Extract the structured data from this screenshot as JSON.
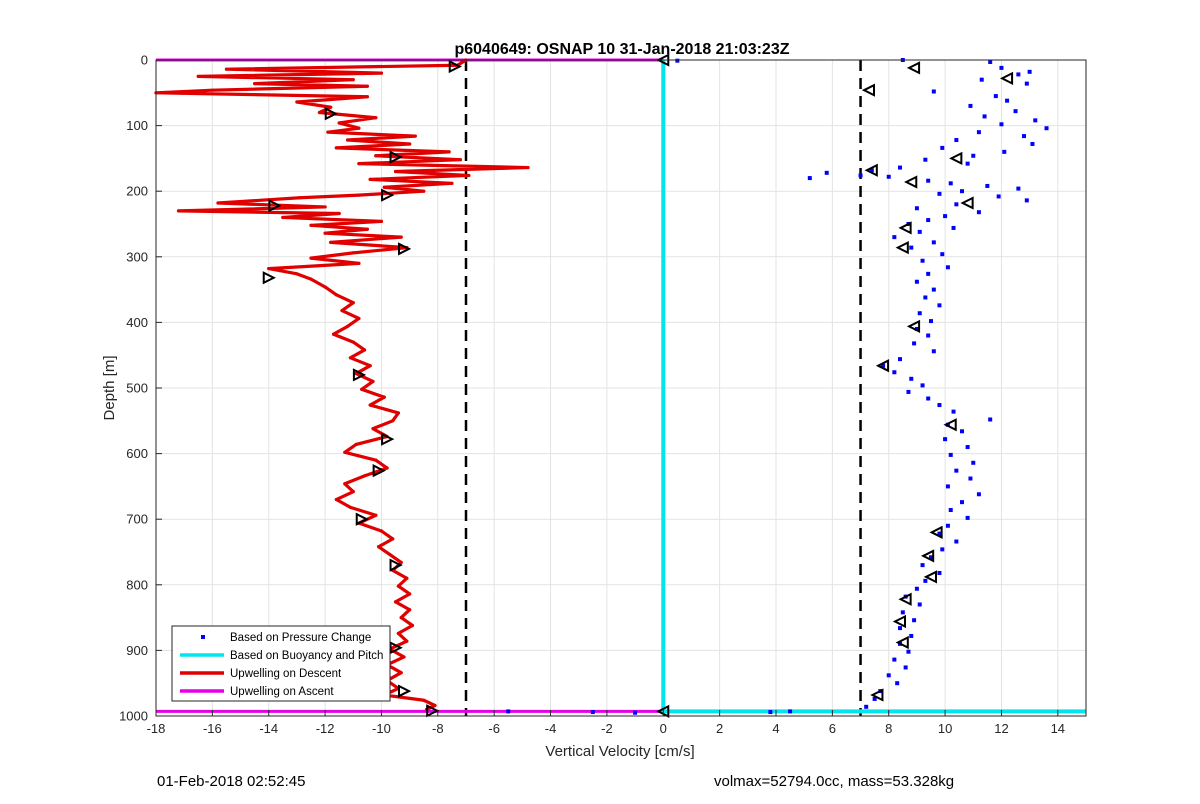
{
  "chart_data": {
    "type": "scatter",
    "title": "p6040649: OSNAP 10 31-Jan-2018 21:03:23Z",
    "xlabel": "Vertical Velocity [cm/s]",
    "ylabel": "Depth [m]",
    "xlim": [
      -18,
      15
    ],
    "ylim": [
      1000,
      0
    ],
    "x_ticks": [
      -18,
      -16,
      -14,
      -12,
      -10,
      -8,
      -6,
      -4,
      -2,
      0,
      2,
      4,
      6,
      8,
      10,
      12,
      14
    ],
    "y_ticks": [
      0,
      100,
      200,
      300,
      400,
      500,
      600,
      700,
      800,
      900,
      1000
    ],
    "grid": true,
    "legend_position": "bottom-left",
    "reference_lines_x": [
      -7,
      7
    ],
    "series": [
      {
        "name": "Based on Pressure Change",
        "kind": "points",
        "color": "#0000ff",
        "points": [
          [
            8.5,
            0
          ],
          [
            11.6,
            3
          ],
          [
            12.0,
            12
          ],
          [
            13.0,
            18
          ],
          [
            12.6,
            22
          ],
          [
            11.3,
            30
          ],
          [
            12.9,
            36
          ],
          [
            9.6,
            48
          ],
          [
            11.8,
            55
          ],
          [
            12.2,
            62
          ],
          [
            10.9,
            70
          ],
          [
            12.5,
            78
          ],
          [
            11.4,
            86
          ],
          [
            13.2,
            92
          ],
          [
            12.0,
            98
          ],
          [
            13.6,
            104
          ],
          [
            11.2,
            110
          ],
          [
            12.8,
            116
          ],
          [
            10.4,
            122
          ],
          [
            13.1,
            128
          ],
          [
            9.9,
            134
          ],
          [
            12.1,
            140
          ],
          [
            11.0,
            146
          ],
          [
            9.3,
            152
          ],
          [
            10.8,
            158
          ],
          [
            8.4,
            164
          ],
          [
            7.4,
            168
          ],
          [
            5.8,
            172
          ],
          [
            7.0,
            176
          ],
          [
            8.0,
            178
          ],
          [
            5.2,
            180
          ],
          [
            9.4,
            184
          ],
          [
            10.2,
            188
          ],
          [
            11.5,
            192
          ],
          [
            12.6,
            196
          ],
          [
            10.6,
            200
          ],
          [
            9.8,
            204
          ],
          [
            11.9,
            208
          ],
          [
            12.9,
            214
          ],
          [
            10.4,
            220
          ],
          [
            9.0,
            226
          ],
          [
            11.2,
            232
          ],
          [
            10.0,
            238
          ],
          [
            9.4,
            244
          ],
          [
            8.7,
            250
          ],
          [
            10.3,
            256
          ],
          [
            9.1,
            262
          ],
          [
            8.2,
            270
          ],
          [
            9.6,
            278
          ],
          [
            8.8,
            286
          ],
          [
            9.9,
            296
          ],
          [
            9.2,
            306
          ],
          [
            10.1,
            316
          ],
          [
            9.4,
            326
          ],
          [
            9.0,
            338
          ],
          [
            9.6,
            350
          ],
          [
            9.3,
            362
          ],
          [
            9.8,
            374
          ],
          [
            9.1,
            386
          ],
          [
            9.5,
            398
          ],
          [
            9.0,
            410
          ],
          [
            9.4,
            420
          ],
          [
            8.9,
            432
          ],
          [
            9.6,
            444
          ],
          [
            8.4,
            456
          ],
          [
            7.8,
            466
          ],
          [
            8.2,
            476
          ],
          [
            8.8,
            486
          ],
          [
            9.2,
            496
          ],
          [
            8.7,
            506
          ],
          [
            9.4,
            516
          ],
          [
            9.8,
            526
          ],
          [
            10.3,
            536
          ],
          [
            11.6,
            548
          ],
          [
            10.1,
            556
          ],
          [
            10.6,
            566
          ],
          [
            10.0,
            578
          ],
          [
            10.8,
            590
          ],
          [
            10.2,
            602
          ],
          [
            11.0,
            614
          ],
          [
            10.4,
            626
          ],
          [
            10.9,
            638
          ],
          [
            10.1,
            650
          ],
          [
            11.2,
            662
          ],
          [
            10.6,
            674
          ],
          [
            10.2,
            686
          ],
          [
            10.8,
            698
          ],
          [
            10.1,
            710
          ],
          [
            9.8,
            722
          ],
          [
            10.4,
            734
          ],
          [
            9.9,
            746
          ],
          [
            9.5,
            758
          ],
          [
            9.2,
            770
          ],
          [
            9.8,
            782
          ],
          [
            9.3,
            794
          ],
          [
            9.0,
            806
          ],
          [
            8.6,
            818
          ],
          [
            9.1,
            830
          ],
          [
            8.5,
            842
          ],
          [
            8.9,
            854
          ],
          [
            8.4,
            866
          ],
          [
            8.8,
            878
          ],
          [
            8.4,
            890
          ],
          [
            8.7,
            902
          ],
          [
            8.2,
            914
          ],
          [
            8.6,
            926
          ],
          [
            8.0,
            938
          ],
          [
            8.3,
            950
          ],
          [
            7.7,
            962
          ],
          [
            7.5,
            974
          ],
          [
            7.2,
            986
          ],
          [
            4.5,
            993
          ],
          [
            3.8,
            994
          ],
          [
            0.5,
            1
          ],
          [
            -1.0,
            995
          ],
          [
            -2.5,
            994
          ],
          [
            -5.5,
            993
          ]
        ]
      },
      {
        "name": "Based on Buoyancy and Pitch",
        "kind": "line",
        "color": "#00e5ee",
        "points": [
          [
            0,
            0
          ],
          [
            0,
            993
          ],
          [
            15,
            993
          ]
        ]
      },
      {
        "name": "Upwelling on Descent",
        "kind": "line",
        "color": "#e00000",
        "points": [
          [
            -7.0,
            0
          ],
          [
            -7.3,
            8
          ],
          [
            -15.5,
            14
          ],
          [
            -10.0,
            20
          ],
          [
            -16.5,
            25
          ],
          [
            -11.0,
            30
          ],
          [
            -14.5,
            36
          ],
          [
            -10.5,
            40
          ],
          [
            -16.0,
            46
          ],
          [
            -18.0,
            50
          ],
          [
            -10.5,
            56
          ],
          [
            -13.0,
            64
          ],
          [
            -11.8,
            72
          ],
          [
            -12.2,
            80
          ],
          [
            -10.2,
            88
          ],
          [
            -11.5,
            96
          ],
          [
            -10.8,
            104
          ],
          [
            -11.9,
            110
          ],
          [
            -8.8,
            116
          ],
          [
            -11.2,
            122
          ],
          [
            -9.0,
            128
          ],
          [
            -11.6,
            134
          ],
          [
            -7.6,
            140
          ],
          [
            -10.2,
            146
          ],
          [
            -7.2,
            152
          ],
          [
            -10.8,
            158
          ],
          [
            -4.8,
            164
          ],
          [
            -9.5,
            170
          ],
          [
            -6.9,
            176
          ],
          [
            -10.4,
            182
          ],
          [
            -7.5,
            188
          ],
          [
            -9.9,
            194
          ],
          [
            -8.5,
            200
          ],
          [
            -10.8,
            206
          ],
          [
            -12.9,
            210
          ],
          [
            -15.8,
            218
          ],
          [
            -12.0,
            224
          ],
          [
            -17.2,
            230
          ],
          [
            -11.5,
            234
          ],
          [
            -13.5,
            240
          ],
          [
            -10.0,
            246
          ],
          [
            -12.5,
            252
          ],
          [
            -10.5,
            258
          ],
          [
            -12.0,
            264
          ],
          [
            -9.3,
            270
          ],
          [
            -11.8,
            278
          ],
          [
            -9.1,
            286
          ],
          [
            -11.0,
            294
          ],
          [
            -12.5,
            302
          ],
          [
            -10.8,
            310
          ],
          [
            -14.0,
            318
          ],
          [
            -13.0,
            326
          ],
          [
            -12.5,
            334
          ],
          [
            -12.0,
            346
          ],
          [
            -11.6,
            358
          ],
          [
            -11.0,
            370
          ],
          [
            -11.4,
            382
          ],
          [
            -10.8,
            394
          ],
          [
            -11.2,
            406
          ],
          [
            -11.7,
            418
          ],
          [
            -11.0,
            430
          ],
          [
            -10.6,
            442
          ],
          [
            -11.1,
            454
          ],
          [
            -10.4,
            466
          ],
          [
            -10.9,
            478
          ],
          [
            -10.3,
            490
          ],
          [
            -10.7,
            502
          ],
          [
            -9.9,
            514
          ],
          [
            -10.4,
            526
          ],
          [
            -9.4,
            538
          ],
          [
            -9.6,
            550
          ],
          [
            -10.3,
            562
          ],
          [
            -9.8,
            574
          ],
          [
            -10.9,
            586
          ],
          [
            -11.3,
            598
          ],
          [
            -10.2,
            610
          ],
          [
            -9.8,
            622
          ],
          [
            -10.6,
            634
          ],
          [
            -11.3,
            646
          ],
          [
            -11.0,
            658
          ],
          [
            -11.6,
            670
          ],
          [
            -11.1,
            682
          ],
          [
            -10.2,
            694
          ],
          [
            -10.8,
            706
          ],
          [
            -10.0,
            718
          ],
          [
            -9.6,
            730
          ],
          [
            -10.1,
            742
          ],
          [
            -9.7,
            754
          ],
          [
            -9.3,
            766
          ],
          [
            -9.6,
            778
          ],
          [
            -9.1,
            790
          ],
          [
            -9.4,
            802
          ],
          [
            -9.0,
            814
          ],
          [
            -9.5,
            826
          ],
          [
            -9.0,
            838
          ],
          [
            -9.3,
            850
          ],
          [
            -8.9,
            862
          ],
          [
            -9.4,
            874
          ],
          [
            -9.1,
            886
          ],
          [
            -9.7,
            898
          ],
          [
            -9.2,
            910
          ],
          [
            -9.8,
            922
          ],
          [
            -9.3,
            934
          ],
          [
            -9.8,
            946
          ],
          [
            -9.4,
            958
          ],
          [
            -9.9,
            968
          ],
          [
            -8.5,
            976
          ],
          [
            -8.1,
            984
          ],
          [
            -8.4,
            990
          ]
        ]
      },
      {
        "name": "Upwelling on Ascent",
        "kind": "line",
        "color": "#e600e6",
        "points": [
          [
            -18,
            0
          ],
          [
            0,
            0
          ],
          [
            0,
            993
          ],
          [
            -18,
            993
          ]
        ]
      }
    ],
    "markers": {
      "descent": [
        [
          -7.4,
          10
        ],
        [
          -11.8,
          82
        ],
        [
          -9.5,
          148
        ],
        [
          -9.8,
          206
        ],
        [
          -13.8,
          222
        ],
        [
          -9.2,
          288
        ],
        [
          -14.0,
          332
        ],
        [
          -10.8,
          480
        ],
        [
          -9.8,
          578
        ],
        [
          -10.1,
          626
        ],
        [
          -10.7,
          700
        ],
        [
          -9.5,
          770
        ],
        [
          -9.5,
          896
        ],
        [
          -9.2,
          962
        ],
        [
          -8.2,
          992
        ]
      ],
      "ascent": [
        [
          8.9,
          12
        ],
        [
          12.2,
          28
        ],
        [
          7.3,
          46
        ],
        [
          10.4,
          150
        ],
        [
          7.4,
          168
        ],
        [
          8.8,
          186
        ],
        [
          10.8,
          218
        ],
        [
          8.6,
          256
        ],
        [
          8.5,
          286
        ],
        [
          8.9,
          406
        ],
        [
          7.8,
          466
        ],
        [
          10.2,
          556
        ],
        [
          9.7,
          720
        ],
        [
          9.4,
          756
        ],
        [
          9.5,
          788
        ],
        [
          8.6,
          822
        ],
        [
          8.4,
          856
        ],
        [
          8.5,
          888
        ],
        [
          7.6,
          968
        ],
        [
          0,
          0
        ],
        [
          0,
          993
        ]
      ]
    }
  },
  "footer": {
    "left": "01-Feb-2018 02:52:45",
    "right": "volmax=52794.0cc, mass=53.328kg"
  }
}
